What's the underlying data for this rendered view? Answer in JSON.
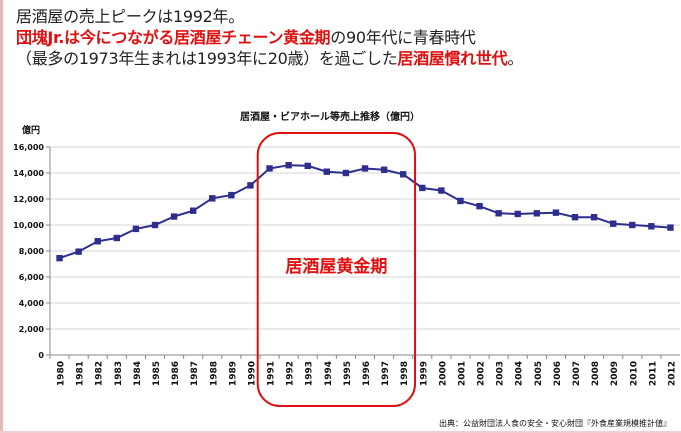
{
  "headline": {
    "line1": "居酒屋の売上ピークは1992年。",
    "line2_red": "団塊Jr.は今につながる居酒屋チェーン黄金期",
    "line2_rest": "の90年代に青春時代",
    "line3_pre": "（最多の1973年生まれは1993年に20歳）を過ごした",
    "line3_red": "居酒屋慣れ世代",
    "line3_end": "。"
  },
  "chart_data": {
    "type": "line",
    "title": "居酒屋・ビアホール等売上推移（億円）",
    "yunit": "億円",
    "categories": [
      "1980",
      "1981",
      "1982",
      "1983",
      "1984",
      "1985",
      "1986",
      "1987",
      "1988",
      "1989",
      "1990",
      "1991",
      "1992",
      "1993",
      "1994",
      "1995",
      "1996",
      "1997",
      "1998",
      "1999",
      "2000",
      "2001",
      "2002",
      "2003",
      "2004",
      "2005",
      "2006",
      "2007",
      "2008",
      "2009",
      "2010",
      "2011",
      "2012"
    ],
    "values": [
      7450,
      7950,
      8750,
      9000,
      9700,
      10000,
      10650,
      11100,
      12050,
      12300,
      13050,
      14350,
      14600,
      14550,
      14100,
      14000,
      14350,
      14250,
      13900,
      12850,
      12650,
      11850,
      11450,
      10900,
      10850,
      10900,
      10950,
      10600,
      10600,
      10100,
      10000,
      9900,
      9800
    ],
    "yticks": [
      "0",
      "2,000",
      "4,000",
      "6,000",
      "8,000",
      "10,000",
      "12,000",
      "14,000",
      "16,000"
    ],
    "ylim": [
      0,
      16000
    ],
    "grid": true,
    "series_color": "#2e2e8f",
    "highlight": {
      "label": "居酒屋黄金期",
      "from": "1991",
      "to": "1998",
      "color": "#e01010"
    }
  },
  "source": "出典：公益財団法人食の安全・安心財団『外食産業規模推計値』"
}
